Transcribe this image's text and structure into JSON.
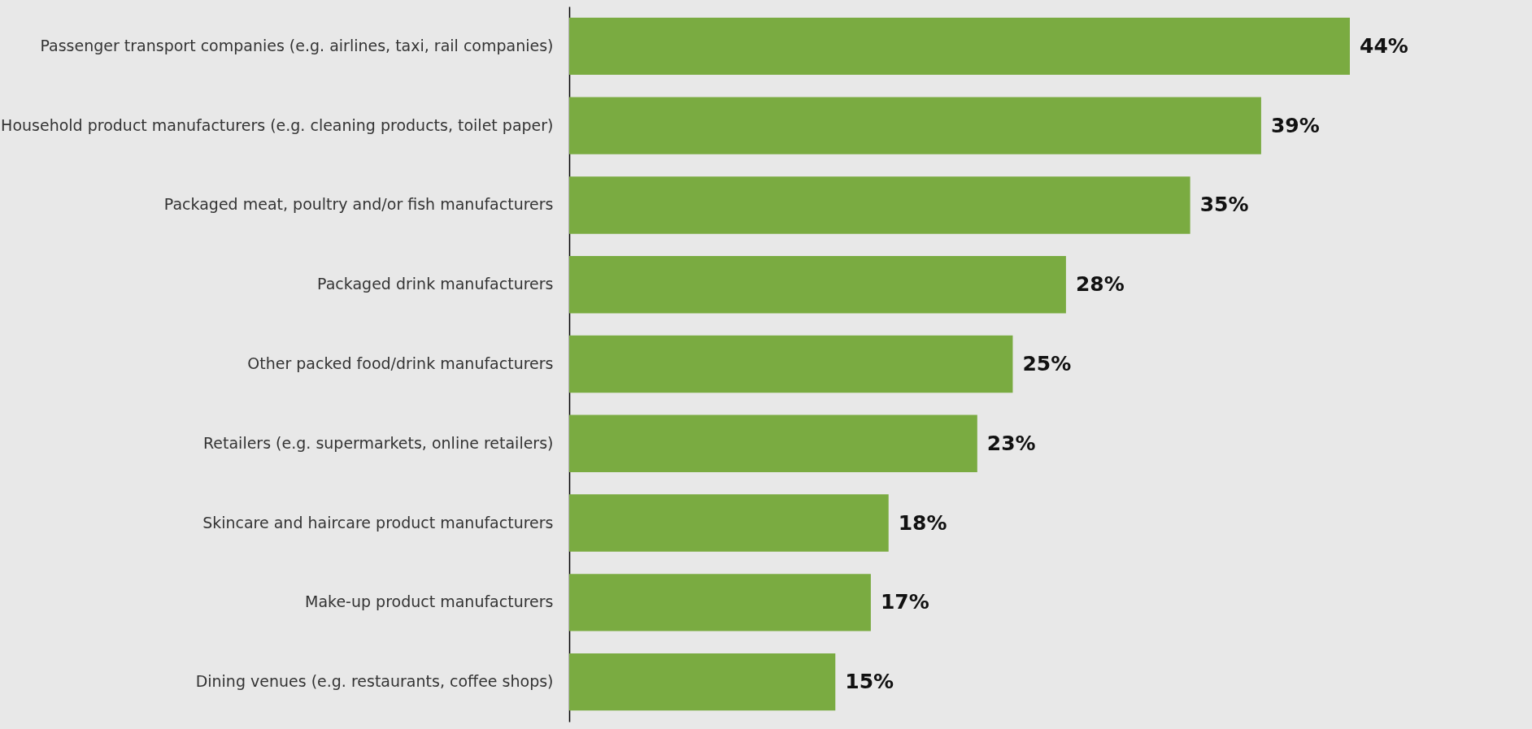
{
  "chart_data": {
    "type": "bar",
    "orientation": "horizontal",
    "categories": [
      "Passenger transport companies (e.g. airlines, taxi, rail companies)",
      "Household product manufacturers (e.g. cleaning products, toilet paper)",
      "Packaged meat, poultry and/or fish manufacturers",
      "Packaged drink manufacturers",
      "Other packed food/drink manufacturers",
      "Retailers (e.g. supermarkets, online retailers)",
      "Skincare and haircare product manufacturers",
      "Make-up product manufacturers",
      "Dining venues (e.g. restaurants, coffee shops)"
    ],
    "values": [
      44,
      39,
      35,
      28,
      25,
      23,
      18,
      17,
      15
    ],
    "value_labels": [
      "44%",
      "39%",
      "35%",
      "28%",
      "25%",
      "23%",
      "18%",
      "17%",
      "15%"
    ],
    "color": "#7aab41"
  }
}
